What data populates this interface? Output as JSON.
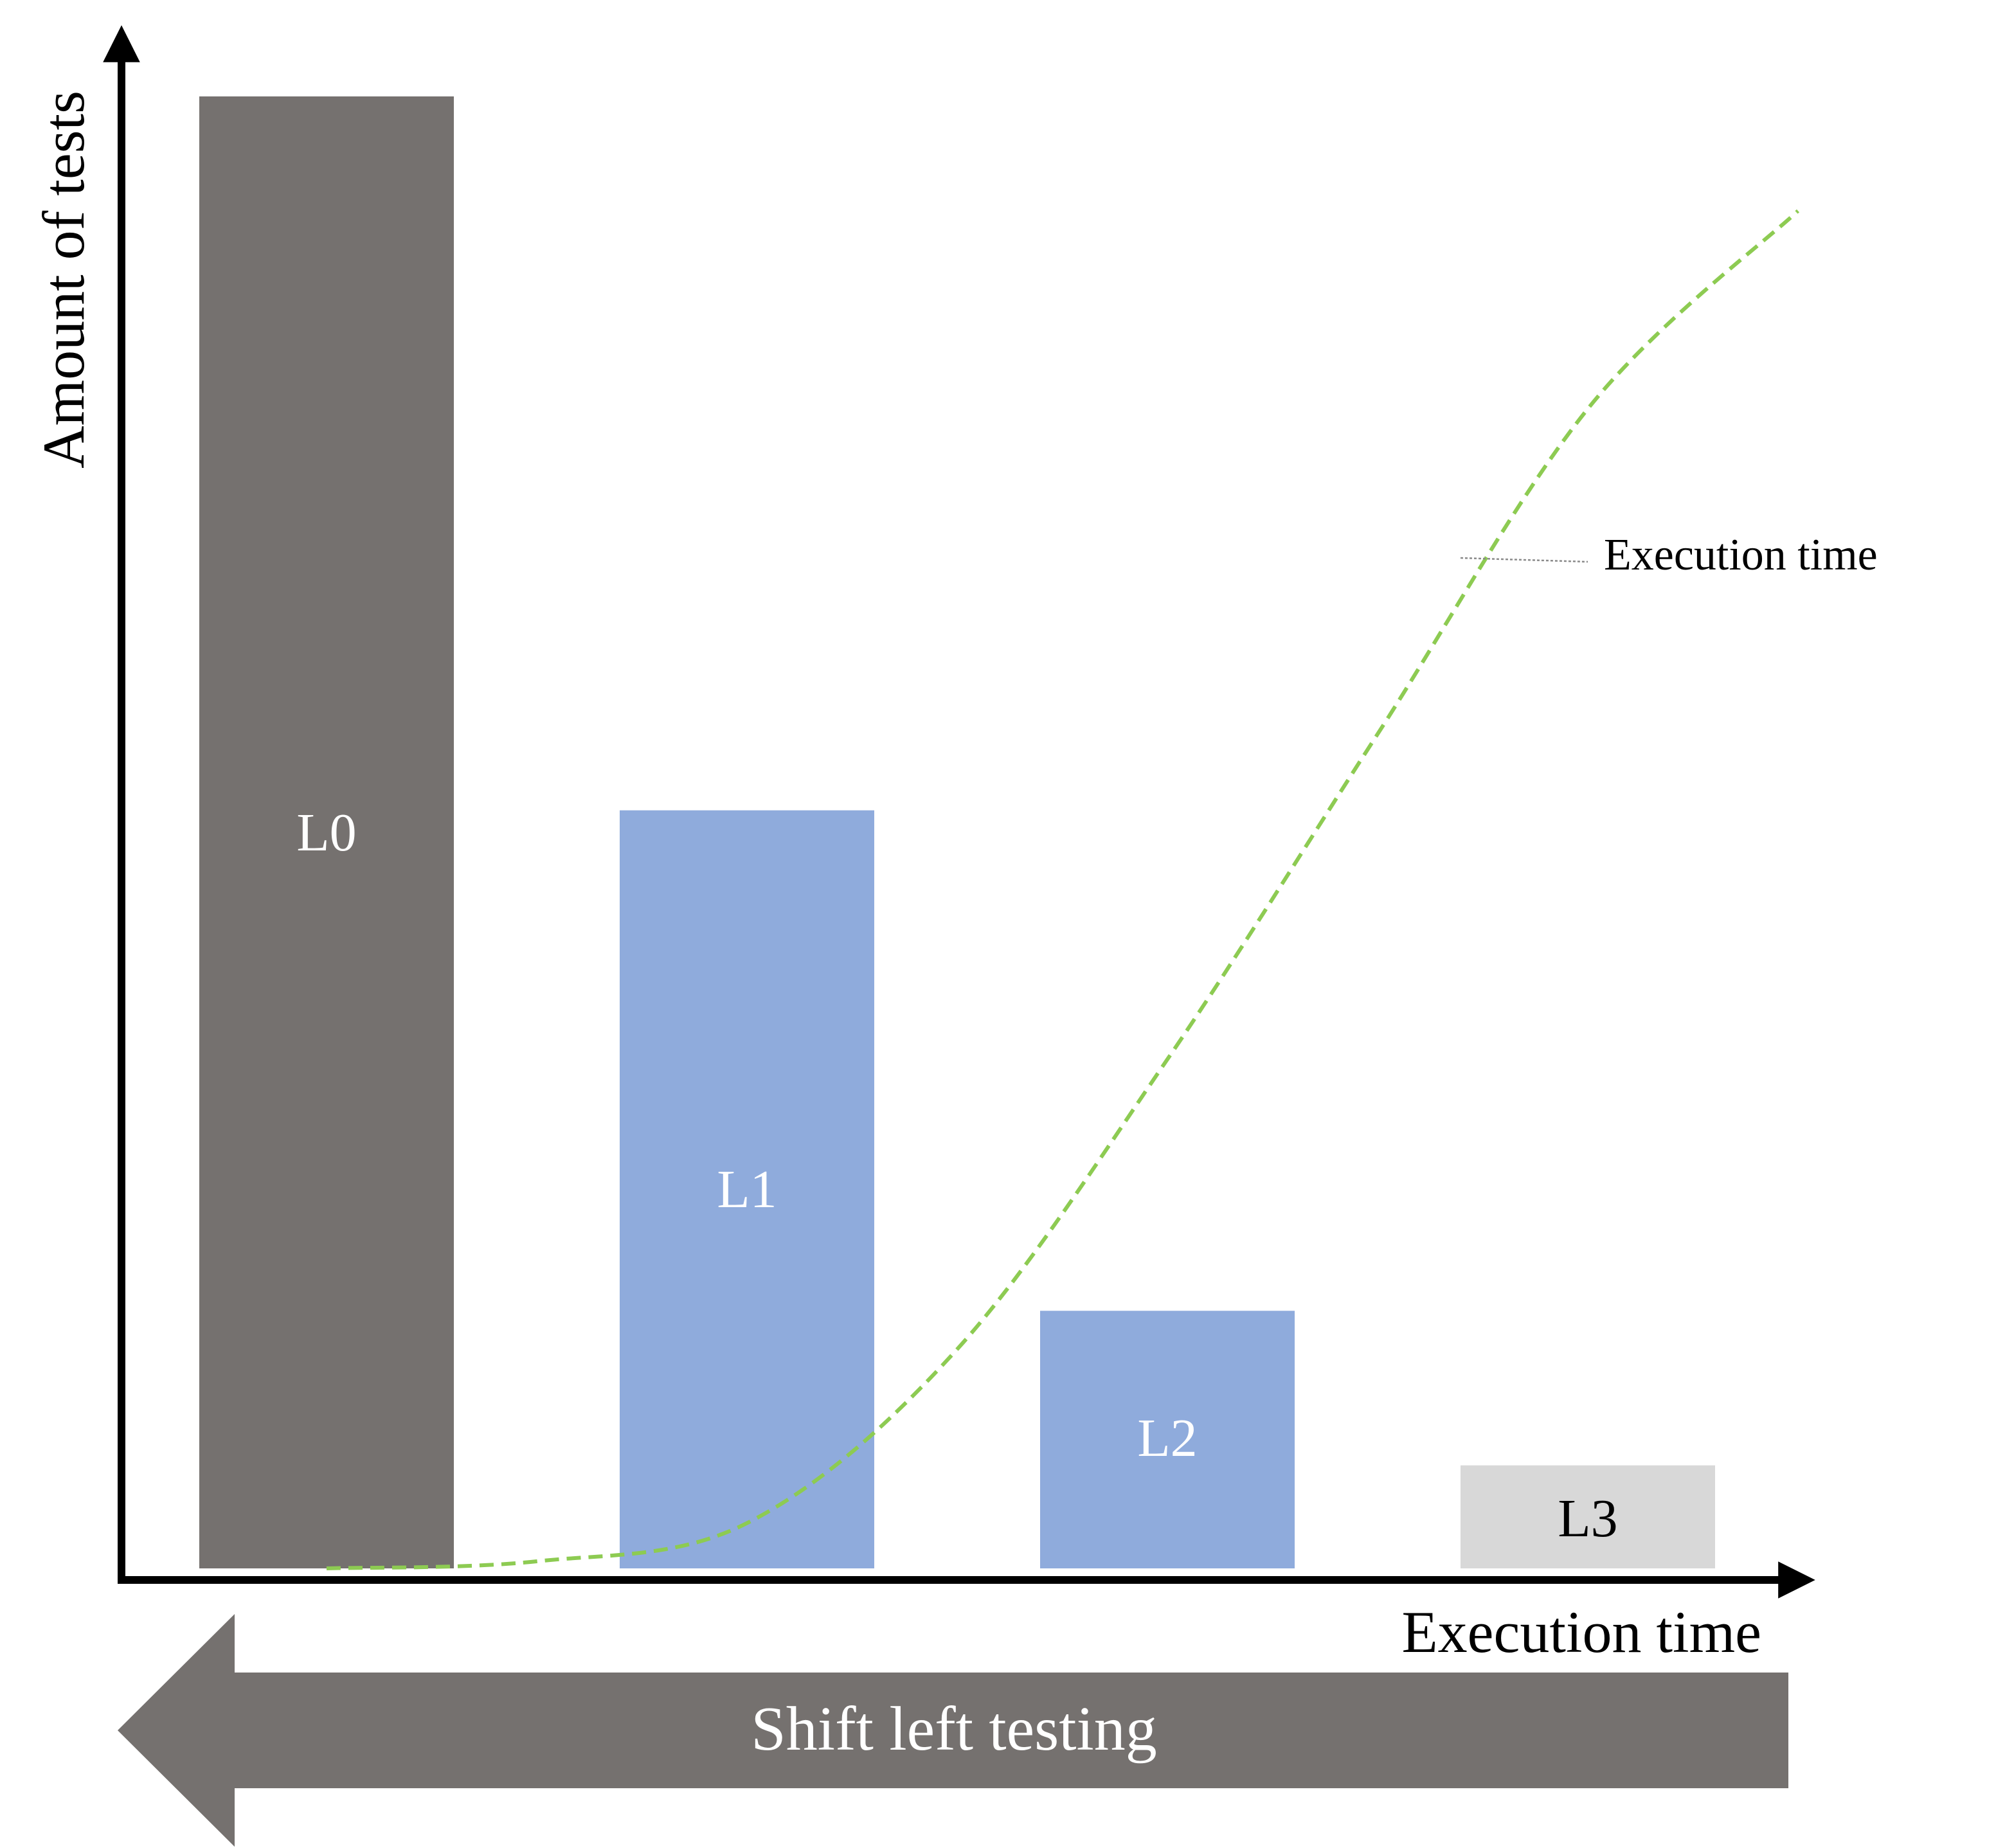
{
  "chart_data": {
    "type": "bar",
    "title": "",
    "xlabel": "Execution time",
    "ylabel": "Amount of tests",
    "categories": [
      "L0",
      "L1",
      "L2",
      "L3"
    ],
    "values": [
      100,
      51.5,
      17.5,
      7
    ],
    "ylim": [
      0,
      100
    ],
    "grid": false,
    "bar_colors": [
      "#75716F",
      "#8FABDC",
      "#8FABDC",
      "#D8D8D8"
    ],
    "label_colors": [
      "#FFFFFF",
      "#FFFFFF",
      "#FFFFFF",
      "#000000"
    ],
    "overlay_series": {
      "name": "Execution time",
      "style": "dashed",
      "color": "#8DCB52",
      "x": [
        0,
        0.5,
        1,
        1.5,
        2,
        2.5,
        3,
        3.5
      ],
      "y": [
        0,
        0.5,
        3.2,
        15.5,
        36,
        59,
        82,
        96
      ]
    },
    "annotation": "Execution time"
  },
  "banner": {
    "text": "Shift left testing",
    "color": "#75716F"
  },
  "axis_color": "#000000"
}
